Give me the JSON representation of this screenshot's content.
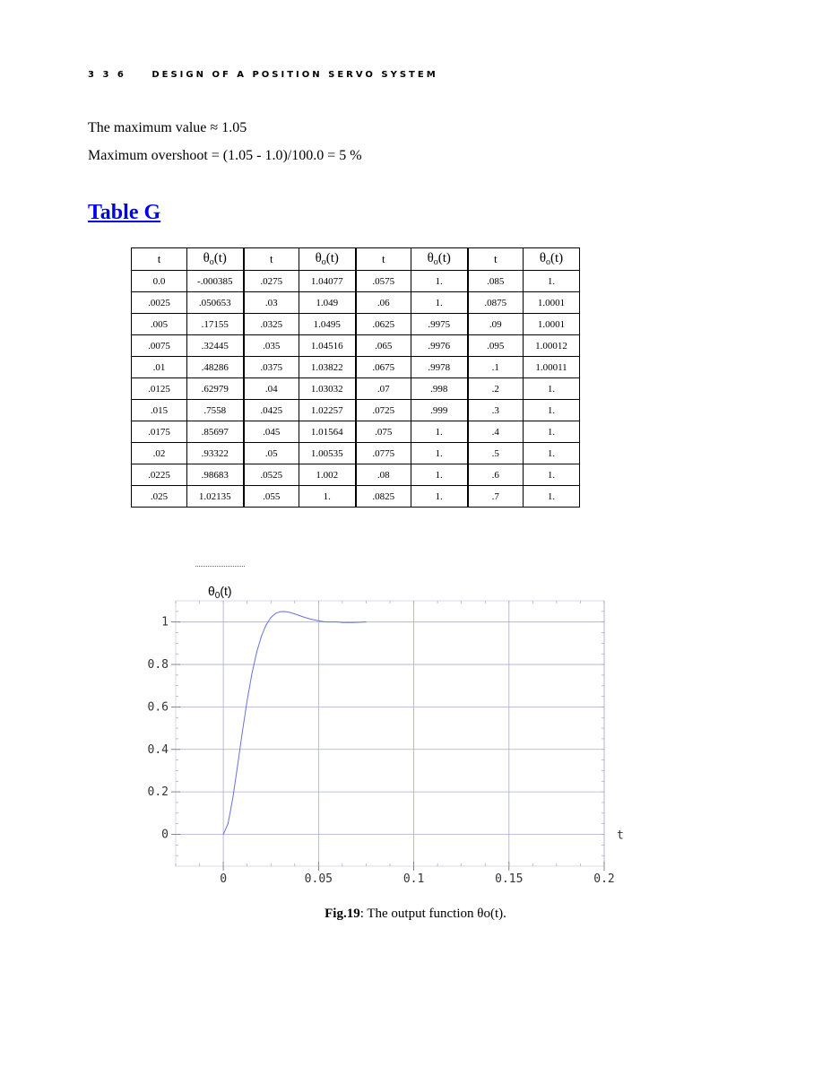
{
  "header": {
    "page_number": "3 3 6",
    "running_title": "DESIGN OF A POSITION SERVO SYSTEM"
  },
  "text": {
    "line1": "The maximum value ≈ 1.05",
    "line2": "Maximum overshoot = (1.05 - 1.0)/100.0 =  5 %"
  },
  "table_title": "Table  G",
  "table": {
    "headers": [
      "t",
      "θo(t)",
      "t",
      "θo(t)",
      "t",
      "θo(t)",
      "t",
      "θo(t)"
    ],
    "rows": [
      [
        "0.0",
        "-.000385",
        ".0275",
        "1.04077",
        ".0575",
        "1.",
        ".085",
        "1."
      ],
      [
        ".0025",
        ".050653",
        ".03",
        "1.049",
        ".06",
        "1.",
        ".0875",
        "1.0001"
      ],
      [
        ".005",
        ".17155",
        ".0325",
        "1.0495",
        ".0625",
        ".9975",
        ".09",
        "1.0001"
      ],
      [
        ".0075",
        ".32445",
        ".035",
        "1.04516",
        ".065",
        ".9976",
        ".095",
        "1.00012"
      ],
      [
        ".01",
        ".48286",
        ".0375",
        "1.03822",
        ".0675",
        ".9978",
        ".1",
        "1.00011"
      ],
      [
        ".0125",
        ".62979",
        ".04",
        "1.03032",
        ".07",
        ".998",
        ".2",
        "1."
      ],
      [
        ".015",
        ".7558",
        ".0425",
        "1.02257",
        ".0725",
        ".999",
        ".3",
        "1."
      ],
      [
        ".0175",
        ".85697",
        ".045",
        "1.01564",
        ".075",
        "1.",
        ".4",
        "1."
      ],
      [
        ".02",
        ".93322",
        ".05",
        "1.00535",
        ".0775",
        "1.",
        ".5",
        "1."
      ],
      [
        ".0225",
        ".98683",
        ".0525",
        "1.002",
        ".08",
        "1.",
        ".6",
        "1."
      ],
      [
        ".025",
        "1.02135",
        ".055",
        "1.",
        ".0825",
        "1.",
        ".7",
        "1."
      ]
    ]
  },
  "chart_data": {
    "type": "line",
    "ylabel": "θ0(t)",
    "xlabel": "t",
    "xlim": [
      -0.025,
      0.2
    ],
    "ylim": [
      -0.15,
      1.1
    ],
    "xticks": [
      "0",
      "0.05",
      "0.1",
      "0.15",
      "0.2"
    ],
    "yticks": [
      "0",
      "0.2",
      "0.4",
      "0.6",
      "0.8",
      "1"
    ],
    "grid": true,
    "series_color": "#6a72d8",
    "grid_color": "#a8acd0",
    "series": [
      {
        "x": [
          0,
          0.0025,
          0.005,
          0.0075,
          0.01,
          0.0125,
          0.015,
          0.0175,
          0.02,
          0.0225,
          0.025,
          0.0275,
          0.03,
          0.0325,
          0.035,
          0.0375,
          0.04,
          0.0425,
          0.045,
          0.05,
          0.0525,
          0.055,
          0.0575,
          0.06,
          0.0625,
          0.065,
          0.0675,
          0.07,
          0.0725,
          0.075
        ],
        "y": [
          -0.000385,
          0.050653,
          0.17155,
          0.32445,
          0.48286,
          0.62979,
          0.7558,
          0.85697,
          0.93322,
          0.98683,
          1.02135,
          1.04077,
          1.049,
          1.0495,
          1.04516,
          1.03822,
          1.03032,
          1.02257,
          1.01564,
          1.00535,
          1.002,
          1.0,
          1.0,
          1.0,
          0.9975,
          0.9976,
          0.9978,
          0.998,
          0.999,
          1.0
        ]
      }
    ]
  },
  "caption": {
    "bold": "Fig.19",
    "rest": ": The output function θo(t)."
  }
}
